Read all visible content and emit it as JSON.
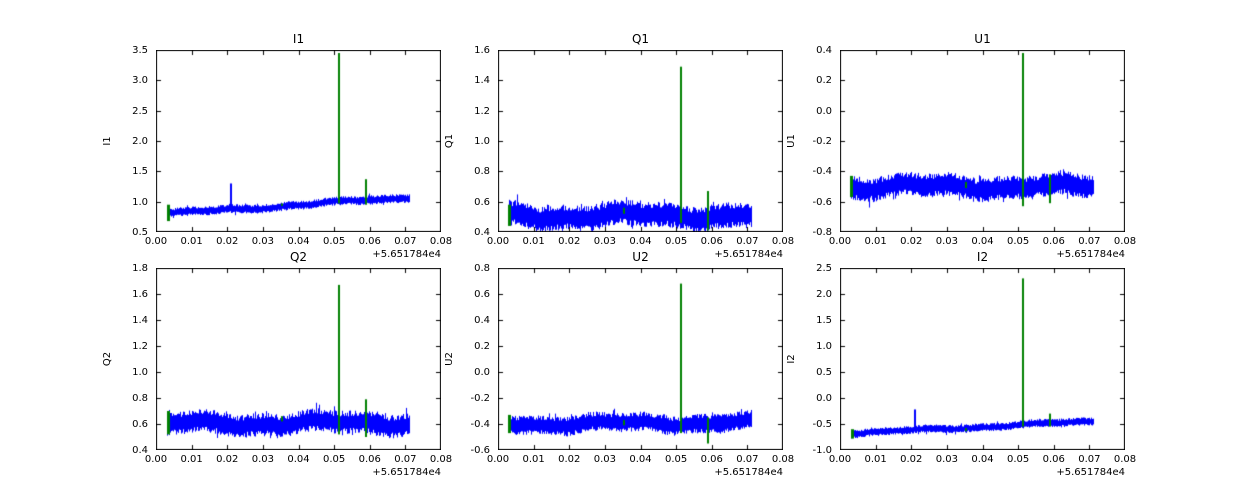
{
  "figure": {
    "background": "#ffffff",
    "line_color": "#0000ff",
    "spike_color": "#008000",
    "frame_color": "#000000"
  },
  "chart_data": [
    {
      "type": "line",
      "title": "I1",
      "ylabel": "I1",
      "xlabel": "",
      "xlim": [
        0.0,
        0.08
      ],
      "ylim": [
        0.5,
        3.5
      ],
      "xtick_labels": [
        "0.00",
        "0.01",
        "0.02",
        "0.03",
        "0.04",
        "0.05",
        "0.06",
        "0.07",
        "0.08"
      ],
      "xtick_values": [
        0.0,
        0.01,
        0.02,
        0.03,
        0.04,
        0.05,
        0.06,
        0.07,
        0.08
      ],
      "ytick_labels": [
        "0.5",
        "1.0",
        "1.5",
        "2.0",
        "2.5",
        "3.0",
        "3.5"
      ],
      "ytick_values": [
        0.5,
        1.0,
        1.5,
        2.0,
        2.5,
        3.0,
        3.5
      ],
      "x_offset_label": "+5.651784e4",
      "series": {
        "x_start": 0.003,
        "x_end": 0.071,
        "y_start": 0.8,
        "y_end": 1.07,
        "noise_amplitude": 0.075
      },
      "blue_spikes": [
        {
          "x": 0.021,
          "y": 1.3
        }
      ],
      "green_spikes": [
        {
          "x": 0.0035,
          "y0": 0.68,
          "y1": 0.95
        },
        {
          "x": 0.0355,
          "y0": 0.93,
          "y1": 0.97
        },
        {
          "x": 0.0515,
          "y0": 0.97,
          "y1": 3.45
        },
        {
          "x": 0.059,
          "y0": 0.95,
          "y1": 1.37
        }
      ]
    },
    {
      "type": "line",
      "title": "Q1",
      "ylabel": "Q1",
      "xlabel": "",
      "xlim": [
        0.0,
        0.08
      ],
      "ylim": [
        0.4,
        1.6
      ],
      "xtick_labels": [
        "0.00",
        "0.01",
        "0.02",
        "0.03",
        "0.04",
        "0.05",
        "0.06",
        "0.07",
        "0.08"
      ],
      "xtick_values": [
        0.0,
        0.01,
        0.02,
        0.03,
        0.04,
        0.05,
        0.06,
        0.07,
        0.08
      ],
      "ytick_labels": [
        "0.4",
        "0.6",
        "0.8",
        "1.0",
        "1.2",
        "1.4",
        "1.6"
      ],
      "ytick_values": [
        0.4,
        0.6,
        0.8,
        1.0,
        1.2,
        1.4,
        1.6
      ],
      "x_offset_label": "+5.651784e4",
      "series": {
        "x_start": 0.003,
        "x_end": 0.071,
        "y_start": 0.505,
        "y_end": 0.51,
        "noise_amplitude": 0.085
      },
      "blue_spikes": [],
      "green_spikes": [
        {
          "x": 0.003,
          "y0": 0.44,
          "y1": 0.58
        },
        {
          "x": 0.0355,
          "y0": 0.52,
          "y1": 0.56
        },
        {
          "x": 0.0515,
          "y0": 0.46,
          "y1": 1.49
        },
        {
          "x": 0.059,
          "y0": 0.41,
          "y1": 0.67
        }
      ]
    },
    {
      "type": "line",
      "title": "U1",
      "ylabel": "U1",
      "xlabel": "",
      "xlim": [
        0.0,
        0.08
      ],
      "ylim": [
        -0.8,
        0.4
      ],
      "xtick_labels": [
        "0.00",
        "0.01",
        "0.02",
        "0.03",
        "0.04",
        "0.05",
        "0.06",
        "0.07",
        "0.08"
      ],
      "xtick_values": [
        0.0,
        0.01,
        0.02,
        0.03,
        0.04,
        0.05,
        0.06,
        0.07,
        0.08
      ],
      "ytick_labels": [
        "-0.8",
        "-0.6",
        "-0.4",
        "-0.2",
        "0.0",
        "0.2",
        "0.4"
      ],
      "ytick_values": [
        -0.8,
        -0.6,
        -0.4,
        -0.2,
        0.0,
        0.2,
        0.4
      ],
      "x_offset_label": "+5.651784e4",
      "series": {
        "x_start": 0.003,
        "x_end": 0.071,
        "y_start": -0.5,
        "y_end": -0.5,
        "noise_amplitude": 0.08
      },
      "blue_spikes": [],
      "green_spikes": [
        {
          "x": 0.003,
          "y0": -0.57,
          "y1": -0.43
        },
        {
          "x": 0.0355,
          "y0": -0.51,
          "y1": -0.47
        },
        {
          "x": 0.0515,
          "y0": -0.63,
          "y1": 0.38
        },
        {
          "x": 0.059,
          "y0": -0.61,
          "y1": -0.42
        }
      ]
    },
    {
      "type": "line",
      "title": "Q2",
      "ylabel": "Q2",
      "xlabel": "",
      "xlim": [
        0.0,
        0.08
      ],
      "ylim": [
        0.4,
        1.8
      ],
      "xtick_labels": [
        "0.00",
        "0.01",
        "0.02",
        "0.03",
        "0.04",
        "0.05",
        "0.06",
        "0.07",
        "0.08"
      ],
      "xtick_values": [
        0.0,
        0.01,
        0.02,
        0.03,
        0.04,
        0.05,
        0.06,
        0.07,
        0.08
      ],
      "ytick_labels": [
        "0.4",
        "0.6",
        "0.8",
        "1.0",
        "1.2",
        "1.4",
        "1.6",
        "1.8"
      ],
      "ytick_values": [
        0.4,
        0.6,
        0.8,
        1.0,
        1.2,
        1.4,
        1.6,
        1.8
      ],
      "x_offset_label": "+5.651784e4",
      "series": {
        "x_start": 0.003,
        "x_end": 0.071,
        "y_start": 0.6,
        "y_end": 0.61,
        "noise_amplitude": 0.09
      },
      "blue_spikes": [],
      "green_spikes": [
        {
          "x": 0.0035,
          "y0": 0.52,
          "y1": 0.7
        },
        {
          "x": 0.0355,
          "y0": 0.62,
          "y1": 0.66
        },
        {
          "x": 0.0515,
          "y0": 0.52,
          "y1": 1.67
        },
        {
          "x": 0.059,
          "y0": 0.5,
          "y1": 0.79
        }
      ]
    },
    {
      "type": "line",
      "title": "U2",
      "ylabel": "U2",
      "xlabel": "",
      "xlim": [
        0.0,
        0.08
      ],
      "ylim": [
        -0.6,
        0.8
      ],
      "xtick_labels": [
        "0.00",
        "0.01",
        "0.02",
        "0.03",
        "0.04",
        "0.05",
        "0.06",
        "0.07",
        "0.08"
      ],
      "xtick_values": [
        0.0,
        0.01,
        0.02,
        0.03,
        0.04,
        0.05,
        0.06,
        0.07,
        0.08
      ],
      "ytick_labels": [
        "-0.6",
        "-0.4",
        "-0.2",
        "0.0",
        "0.2",
        "0.4",
        "0.6",
        "0.8"
      ],
      "ytick_values": [
        -0.6,
        -0.4,
        -0.2,
        0.0,
        0.2,
        0.4,
        0.6,
        0.8
      ],
      "x_offset_label": "+5.651784e4",
      "series": {
        "x_start": 0.003,
        "x_end": 0.071,
        "y_start": -0.4,
        "y_end": -0.39,
        "noise_amplitude": 0.075
      },
      "blue_spikes": [],
      "green_spikes": [
        {
          "x": 0.003,
          "y0": -0.47,
          "y1": -0.33
        },
        {
          "x": 0.0355,
          "y0": -0.41,
          "y1": -0.37
        },
        {
          "x": 0.0515,
          "y0": -0.47,
          "y1": 0.68
        },
        {
          "x": 0.059,
          "y0": -0.55,
          "y1": -0.35
        }
      ]
    },
    {
      "type": "line",
      "title": "I2",
      "ylabel": "I2",
      "xlabel": "",
      "xlim": [
        0.0,
        0.08
      ],
      "ylim": [
        -1.0,
        2.5
      ],
      "xtick_labels": [
        "0.00",
        "0.01",
        "0.02",
        "0.03",
        "0.04",
        "0.05",
        "0.06",
        "0.07",
        "0.08"
      ],
      "xtick_values": [
        0.0,
        0.01,
        0.02,
        0.03,
        0.04,
        0.05,
        0.06,
        0.07,
        0.08
      ],
      "ytick_labels": [
        "-1.0",
        "-0.5",
        "0.0",
        "0.5",
        "1.0",
        "1.5",
        "2.0",
        "2.5"
      ],
      "ytick_values": [
        -1.0,
        -0.5,
        0.0,
        0.5,
        1.0,
        1.5,
        2.0,
        2.5
      ],
      "x_offset_label": "+5.651784e4",
      "series": {
        "x_start": 0.003,
        "x_end": 0.071,
        "y_start": -0.68,
        "y_end": -0.45,
        "noise_amplitude": 0.08
      },
      "blue_spikes": [
        {
          "x": 0.021,
          "y": -0.22
        }
      ],
      "green_spikes": [
        {
          "x": 0.0035,
          "y0": -0.78,
          "y1": -0.6
        },
        {
          "x": 0.0355,
          "y0": -0.64,
          "y1": -0.58
        },
        {
          "x": 0.0515,
          "y0": -0.55,
          "y1": 2.3
        },
        {
          "x": 0.059,
          "y0": -0.55,
          "y1": -0.3
        }
      ]
    }
  ]
}
